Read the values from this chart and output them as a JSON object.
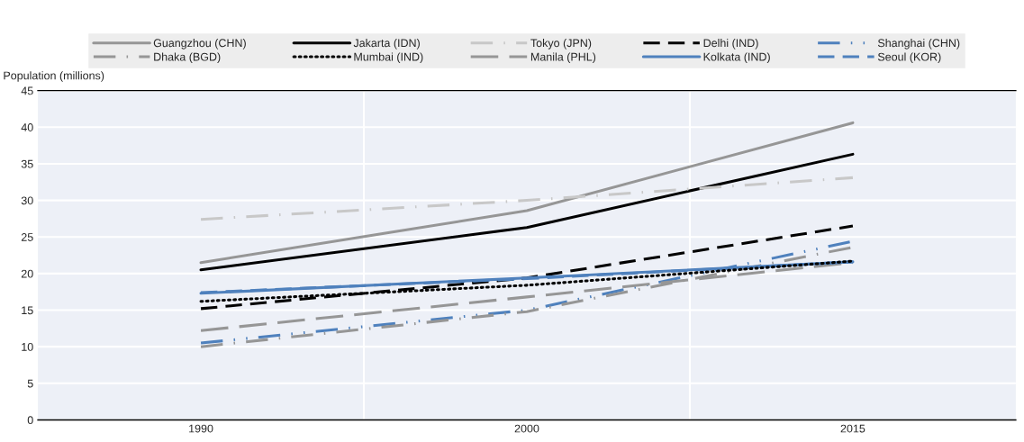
{
  "chart_data": {
    "type": "line",
    "ylabel": "Population (millions)",
    "categories": [
      "1990",
      "2000",
      "2015"
    ],
    "series": [
      {
        "name": "Guangzhou (CHN)",
        "color": "#969696",
        "line_style": "solid",
        "values": [
          21.5,
          28.6,
          40.6
        ]
      },
      {
        "name": "Jakarta (IDN)",
        "color": "#000000",
        "line_style": "solid",
        "values": [
          20.5,
          26.3,
          36.3
        ]
      },
      {
        "name": "Tokyo (JPN)",
        "color": "#c8c8c8",
        "line_style": "dashdot",
        "values": [
          27.4,
          30.0,
          33.1
        ]
      },
      {
        "name": "Delhi (IND)",
        "color": "#000000",
        "line_style": "dashed",
        "values": [
          15.2,
          19.4,
          26.5
        ]
      },
      {
        "name": "Shanghai (CHN)",
        "color": "#4f81bd",
        "line_style": "dashdotdot",
        "values": [
          10.5,
          15.0,
          24.4
        ]
      },
      {
        "name": "Dhaka (BGD)",
        "color": "#969696",
        "line_style": "dashdot",
        "values": [
          10.0,
          14.8,
          23.6
        ]
      },
      {
        "name": "Mumbai (IND)",
        "color": "#000000",
        "line_style": "dotted",
        "values": [
          16.2,
          18.4,
          21.7
        ]
      },
      {
        "name": "Manila (PHL)",
        "color": "#969696",
        "line_style": "longdash",
        "values": [
          12.2,
          16.8,
          21.5
        ]
      },
      {
        "name": "Kolkata (IND)",
        "color": "#4f81bd",
        "line_style": "solid",
        "values": [
          17.3,
          19.4,
          21.6
        ]
      },
      {
        "name": "Seoul (KOR)",
        "color": "#4f81bd",
        "line_style": "dashed",
        "values": [
          17.4,
          19.3,
          21.6
        ]
      }
    ],
    "ylim": [
      0,
      45
    ],
    "yticks": [
      0,
      5,
      10,
      15,
      20,
      25,
      30,
      35,
      40,
      45
    ],
    "grid": true,
    "legend": "top"
  }
}
